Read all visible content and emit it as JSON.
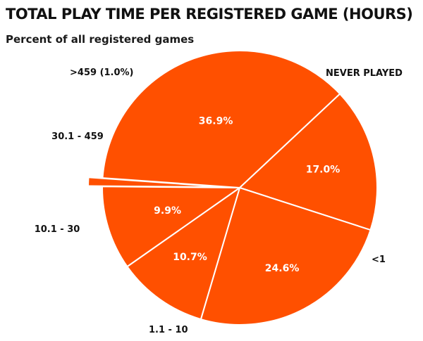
{
  "chart_data": {
    "type": "pie",
    "title": "TOTAL PLAY TIME PER REGISTERED GAME (HOURS)",
    "subtitle": "Percent of all registered games",
    "slice_color": "#ff5000",
    "exploded_slice": ">459",
    "slices": [
      {
        "category": "NEVER PLAYED",
        "value": 36.9,
        "value_label": "36.9%"
      },
      {
        "category": "<1",
        "value": 17.0,
        "value_label": "17.0%"
      },
      {
        "category": "1.1 - 10",
        "value": 24.6,
        "value_label": "24.6%"
      },
      {
        "category": "10.1 - 30",
        "value": 10.7,
        "value_label": "10.7%"
      },
      {
        "category": "30.1 - 459",
        "value": 9.9,
        "value_label": "9.9%"
      },
      {
        "category": ">459",
        "value": 1.0,
        "value_label": "(1.0%)"
      }
    ]
  }
}
